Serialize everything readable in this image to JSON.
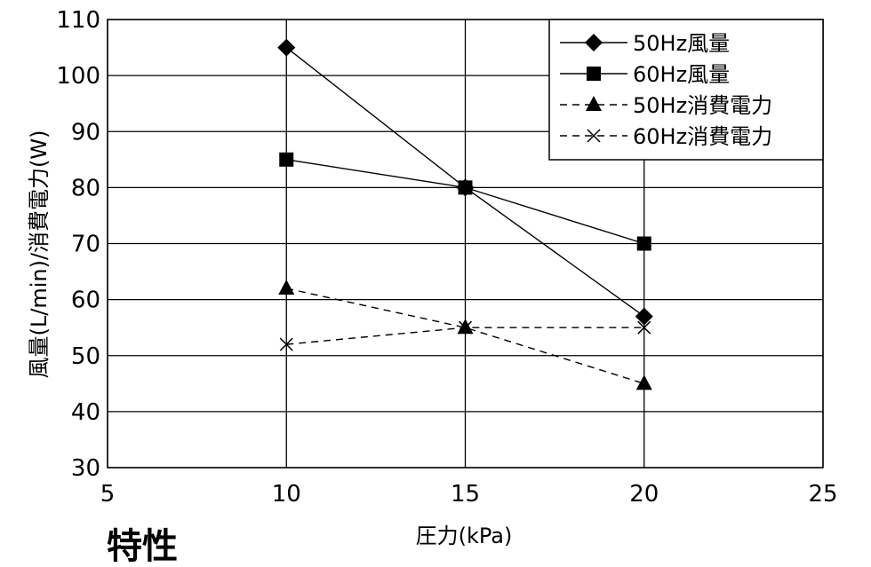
{
  "chart_data": {
    "type": "line",
    "xlabel": "圧力(kPa)",
    "ylabel": "風量(L/min)/消費電力(W)",
    "xlim": [
      5,
      25
    ],
    "ylim": [
      30,
      110
    ],
    "x_ticks": [
      "5",
      "10",
      "15",
      "20",
      "25"
    ],
    "y_ticks": [
      "30",
      "40",
      "50",
      "60",
      "70",
      "80",
      "90",
      "100",
      "110"
    ],
    "grid": true,
    "legend_position": "top-right",
    "series": [
      {
        "name": "50Hz風量",
        "marker": "diamond",
        "line": "solid",
        "x": [
          10,
          15,
          20
        ],
        "y": [
          105,
          80,
          57
        ]
      },
      {
        "name": "60Hz風量",
        "marker": "square",
        "line": "solid",
        "x": [
          10,
          15,
          20
        ],
        "y": [
          85,
          80,
          70
        ]
      },
      {
        "name": "50Hz消費電力",
        "marker": "triangle",
        "line": "dashed",
        "x": [
          10,
          15,
          20
        ],
        "y": [
          62,
          55,
          45
        ]
      },
      {
        "name": "60Hz消費電力",
        "marker": "cross",
        "line": "dashed",
        "x": [
          10,
          15,
          20
        ],
        "y": [
          52,
          55,
          55
        ]
      }
    ]
  },
  "footer_text": "特性"
}
